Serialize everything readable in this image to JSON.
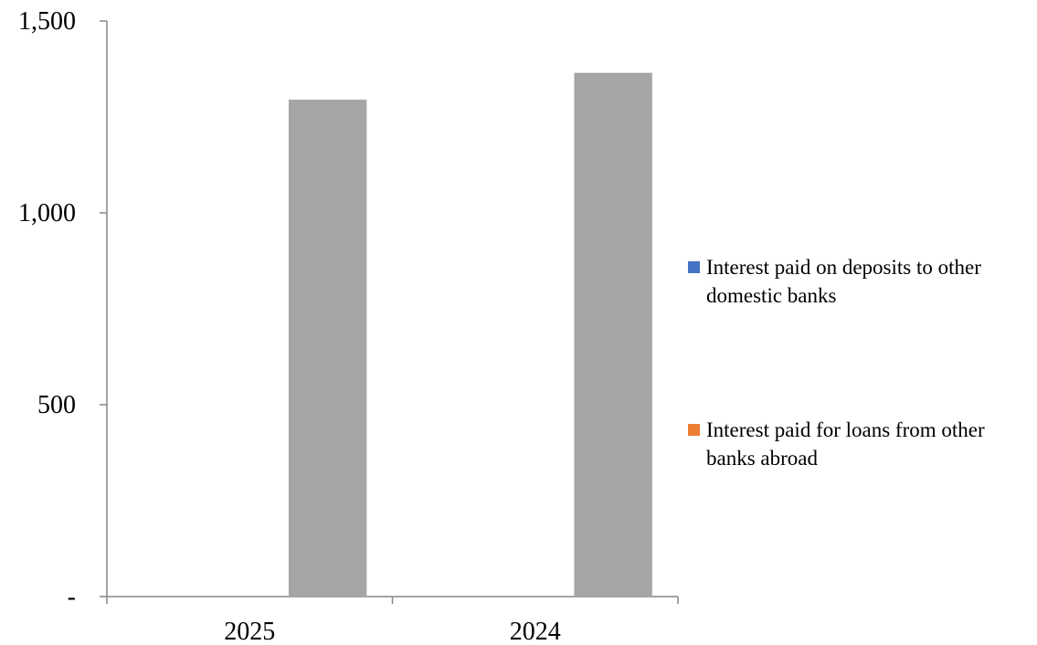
{
  "chart_data": {
    "type": "bar",
    "categories": [
      "2025",
      "2024"
    ],
    "series": [
      {
        "name": "Interest paid on deposits to other domestic banks",
        "values": [
          0,
          0
        ],
        "color": "#4472C4"
      },
      {
        "name": "Interest paid for loans from other banks abroad",
        "values": [
          0,
          0
        ],
        "color": "#ED7D31"
      },
      {
        "values": [
          1295,
          1365
        ],
        "color": "#A5A5A5"
      }
    ],
    "ylim": [
      0,
      1500
    ],
    "yticks": [
      {
        "value": 0,
        "label": "-"
      },
      {
        "value": 500,
        "label": "500"
      },
      {
        "value": 1000,
        "label": "1,000"
      },
      {
        "value": 1500,
        "label": "1,500"
      }
    ],
    "legend": [
      {
        "lines": [
          "Interest paid on deposits to other",
          "domestic banks"
        ],
        "color": "#4472C4"
      },
      {
        "lines": [
          "Interest paid for loans from other",
          "banks abroad"
        ],
        "color": "#ED7D31"
      }
    ],
    "legend_position": "right",
    "grid": false
  }
}
